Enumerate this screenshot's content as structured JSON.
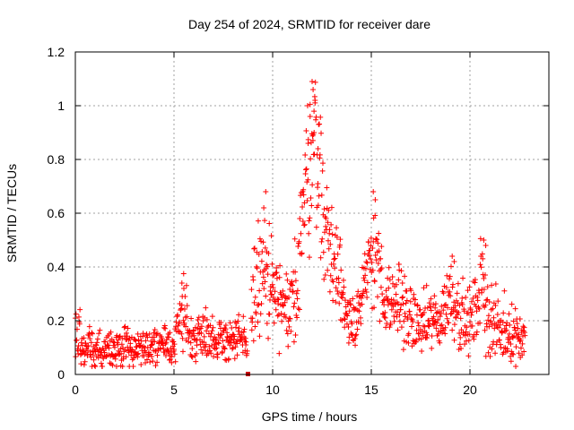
{
  "chart_data": {
    "type": "scatter",
    "title": "Day 254 of 2024, SRMTID for receiver dare",
    "xlabel": "GPS time / hours",
    "ylabel": "SRMTID / TECUs",
    "xlim": [
      0,
      24
    ],
    "ylim": [
      0,
      1.2
    ],
    "xticks": [
      0,
      5,
      10,
      15,
      20
    ],
    "xtick_labels": [
      "0",
      "5",
      "10",
      "15",
      "20"
    ],
    "yticks": [
      0,
      0.2,
      0.4,
      0.6,
      0.8,
      1,
      1.2
    ],
    "ytick_labels": [
      "0",
      "0.2",
      "0.4",
      "0.6",
      "0.8",
      "1",
      "1.2"
    ],
    "grid": true,
    "marker": "+",
    "color": "#ff0000",
    "series": [
      {
        "name": "SRMTID",
        "envelope": [
          [
            0.0,
            0.12,
            0.08
          ],
          [
            0.5,
            0.1,
            0.06
          ],
          [
            1.0,
            0.09,
            0.05
          ],
          [
            1.5,
            0.09,
            0.05
          ],
          [
            2.0,
            0.09,
            0.05
          ],
          [
            2.5,
            0.1,
            0.06
          ],
          [
            3.0,
            0.1,
            0.06
          ],
          [
            3.5,
            0.1,
            0.05
          ],
          [
            4.0,
            0.1,
            0.05
          ],
          [
            4.5,
            0.1,
            0.05
          ],
          [
            5.0,
            0.12,
            0.06
          ],
          [
            5.3,
            0.2,
            0.1
          ],
          [
            5.5,
            0.24,
            0.1
          ],
          [
            5.8,
            0.14,
            0.06
          ],
          [
            6.2,
            0.14,
            0.06
          ],
          [
            6.6,
            0.17,
            0.06
          ],
          [
            7.0,
            0.12,
            0.06
          ],
          [
            7.5,
            0.14,
            0.06
          ],
          [
            8.0,
            0.13,
            0.06
          ],
          [
            8.5,
            0.12,
            0.06
          ],
          [
            8.7,
            0.1,
            0.05
          ],
          [
            9.0,
            0.3,
            0.15
          ],
          [
            9.3,
            0.35,
            0.15
          ],
          [
            9.6,
            0.38,
            0.18
          ],
          [
            10.0,
            0.3,
            0.12
          ],
          [
            10.4,
            0.25,
            0.12
          ],
          [
            10.8,
            0.2,
            0.1
          ],
          [
            11.2,
            0.35,
            0.15
          ],
          [
            11.5,
            0.6,
            0.2
          ],
          [
            11.8,
            0.72,
            0.22
          ],
          [
            12.1,
            0.95,
            0.15
          ],
          [
            12.4,
            0.7,
            0.2
          ],
          [
            12.7,
            0.55,
            0.15
          ],
          [
            13.0,
            0.45,
            0.15
          ],
          [
            13.4,
            0.35,
            0.12
          ],
          [
            13.8,
            0.22,
            0.08
          ],
          [
            14.2,
            0.22,
            0.08
          ],
          [
            14.6,
            0.28,
            0.1
          ],
          [
            15.0,
            0.45,
            0.15
          ],
          [
            15.3,
            0.5,
            0.15
          ],
          [
            15.6,
            0.25,
            0.08
          ],
          [
            16.0,
            0.24,
            0.1
          ],
          [
            16.5,
            0.28,
            0.1
          ],
          [
            17.0,
            0.2,
            0.08
          ],
          [
            17.5,
            0.18,
            0.08
          ],
          [
            18.0,
            0.2,
            0.08
          ],
          [
            18.5,
            0.2,
            0.08
          ],
          [
            19.0,
            0.3,
            0.1
          ],
          [
            19.4,
            0.25,
            0.1
          ],
          [
            19.8,
            0.18,
            0.08
          ],
          [
            20.2,
            0.22,
            0.08
          ],
          [
            20.6,
            0.35,
            0.15
          ],
          [
            21.0,
            0.2,
            0.1
          ],
          [
            21.5,
            0.16,
            0.08
          ],
          [
            22.0,
            0.16,
            0.08
          ],
          [
            22.4,
            0.15,
            0.07
          ],
          [
            22.8,
            0.14,
            0.06
          ]
        ],
        "highlights": [
          [
            12.0,
            1.09
          ],
          [
            12.05,
            1.06
          ],
          [
            12.15,
            1.02
          ],
          [
            11.9,
            0.96
          ],
          [
            12.1,
            0.9
          ],
          [
            11.8,
            0.86
          ],
          [
            12.3,
            0.84
          ],
          [
            15.1,
            0.68
          ],
          [
            15.2,
            0.65
          ],
          [
            9.65,
            0.68
          ],
          [
            9.55,
            0.62
          ],
          [
            20.7,
            0.5
          ],
          [
            20.8,
            0.48
          ],
          [
            5.4,
            0.34
          ],
          [
            5.5,
            0.32
          ],
          [
            19.1,
            0.44
          ],
          [
            19.2,
            0.42
          ],
          [
            16.4,
            0.41
          ],
          [
            8.75,
            0.0
          ]
        ]
      }
    ]
  }
}
